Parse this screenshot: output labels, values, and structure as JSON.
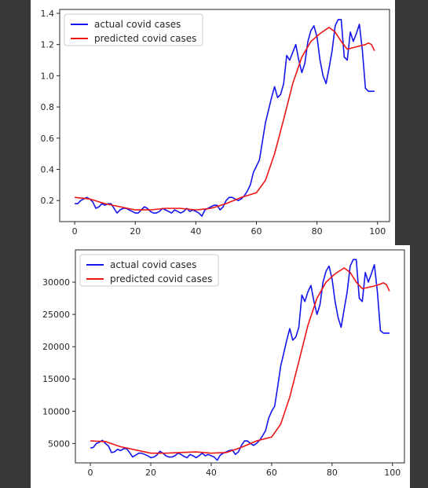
{
  "colors": {
    "actual": "#1515ee",
    "predicted": "#ee1515",
    "axis": "#262626",
    "background": "#383838"
  },
  "chart_data": [
    {
      "type": "line",
      "title": "",
      "xlabel": "",
      "ylabel": "",
      "xlim": [
        -4.95,
        103.95
      ],
      "ylim": [
        0.065,
        1.425
      ],
      "xticks": [
        "0",
        "20",
        "40",
        "60",
        "80",
        "100"
      ],
      "yticks": [
        "0.2",
        "0.4",
        "0.6",
        "0.8",
        "1.0",
        "1.2",
        "1.4"
      ],
      "legend_position": "top-left",
      "grid": false,
      "series": [
        {
          "name": "actual covid cases",
          "color": "#1515ee",
          "x": [
            0,
            1,
            2,
            3,
            4,
            5,
            6,
            7,
            8,
            9,
            10,
            11,
            12,
            13,
            14,
            15,
            16,
            17,
            18,
            19,
            20,
            21,
            22,
            23,
            24,
            25,
            26,
            27,
            28,
            29,
            30,
            31,
            32,
            33,
            34,
            35,
            36,
            37,
            38,
            39,
            40,
            41,
            42,
            43,
            44,
            45,
            46,
            47,
            48,
            49,
            50,
            51,
            52,
            53,
            54,
            55,
            56,
            57,
            58,
            59,
            60,
            61,
            62,
            63,
            64,
            65,
            66,
            67,
            68,
            69,
            70,
            71,
            72,
            73,
            74,
            75,
            76,
            77,
            78,
            79,
            80,
            81,
            82,
            83,
            84,
            85,
            86,
            87,
            88,
            89,
            90,
            91,
            92,
            93,
            94,
            95,
            96,
            97,
            98,
            99
          ],
          "y": [
            0.18,
            0.18,
            0.2,
            0.21,
            0.22,
            0.21,
            0.19,
            0.15,
            0.16,
            0.18,
            0.17,
            0.18,
            0.18,
            0.15,
            0.12,
            0.14,
            0.15,
            0.15,
            0.14,
            0.13,
            0.12,
            0.12,
            0.14,
            0.16,
            0.15,
            0.13,
            0.12,
            0.12,
            0.13,
            0.15,
            0.14,
            0.13,
            0.12,
            0.14,
            0.13,
            0.12,
            0.13,
            0.15,
            0.13,
            0.14,
            0.13,
            0.12,
            0.1,
            0.14,
            0.15,
            0.16,
            0.17,
            0.17,
            0.14,
            0.16,
            0.2,
            0.22,
            0.22,
            0.21,
            0.2,
            0.21,
            0.23,
            0.26,
            0.3,
            0.38,
            0.42,
            0.46,
            0.58,
            0.7,
            0.78,
            0.86,
            0.93,
            0.86,
            0.88,
            0.95,
            1.13,
            1.1,
            1.15,
            1.2,
            1.1,
            1.02,
            1.08,
            1.22,
            1.29,
            1.32,
            1.25,
            1.1,
            1.0,
            0.95,
            1.05,
            1.16,
            1.32,
            1.36,
            1.36,
            1.12,
            1.1,
            1.28,
            1.22,
            1.27,
            1.33,
            1.16,
            0.92,
            0.9,
            0.9,
            0.9
          ]
        },
        {
          "name": "predicted covid cases",
          "color": "#ee1515",
          "x": [
            0,
            5,
            10,
            15,
            20,
            25,
            30,
            35,
            40,
            45,
            50,
            55,
            60,
            63,
            66,
            69,
            72,
            75,
            78,
            81,
            84,
            86,
            88,
            90,
            92,
            94,
            96,
            97,
            98,
            99
          ],
          "y": [
            0.22,
            0.21,
            0.18,
            0.16,
            0.14,
            0.14,
            0.15,
            0.15,
            0.14,
            0.15,
            0.18,
            0.22,
            0.25,
            0.33,
            0.5,
            0.72,
            0.95,
            1.12,
            1.22,
            1.27,
            1.31,
            1.28,
            1.22,
            1.17,
            1.18,
            1.19,
            1.2,
            1.21,
            1.2,
            1.16
          ]
        }
      ]
    },
    {
      "type": "line",
      "title": "",
      "xlabel": "",
      "ylabel": "",
      "xlim": [
        -4.95,
        103.95
      ],
      "ylim": [
        2000,
        35000
      ],
      "xticks": [
        "0",
        "20",
        "40",
        "60",
        "80",
        "100"
      ],
      "yticks": [
        "5000",
        "10000",
        "15000",
        "20000",
        "25000",
        "30000"
      ],
      "legend_position": "top-left",
      "grid": false,
      "series": [
        {
          "name": "actual covid cases",
          "color": "#1515ee",
          "x": [
            0,
            1,
            2,
            3,
            4,
            5,
            6,
            7,
            8,
            9,
            10,
            11,
            12,
            13,
            14,
            15,
            16,
            17,
            18,
            19,
            20,
            21,
            22,
            23,
            24,
            25,
            26,
            27,
            28,
            29,
            30,
            31,
            32,
            33,
            34,
            35,
            36,
            37,
            38,
            39,
            40,
            41,
            42,
            43,
            44,
            45,
            46,
            47,
            48,
            49,
            50,
            51,
            52,
            53,
            54,
            55,
            56,
            57,
            58,
            59,
            60,
            61,
            62,
            63,
            64,
            65,
            66,
            67,
            68,
            69,
            70,
            71,
            72,
            73,
            74,
            75,
            76,
            77,
            78,
            79,
            80,
            81,
            82,
            83,
            84,
            85,
            86,
            87,
            88,
            89,
            90,
            91,
            92,
            93,
            94,
            95,
            96,
            97,
            98,
            99
          ],
          "y": [
            4300,
            4400,
            5000,
            5200,
            5500,
            5000,
            4600,
            3600,
            3700,
            4100,
            3900,
            4200,
            4200,
            3600,
            2900,
            3200,
            3500,
            3500,
            3300,
            3100,
            2800,
            2900,
            3200,
            3800,
            3500,
            3100,
            2900,
            2900,
            3100,
            3500,
            3300,
            3000,
            2800,
            3300,
            3100,
            2800,
            3100,
            3500,
            3100,
            3300,
            3100,
            2900,
            2400,
            3200,
            3500,
            3700,
            3900,
            4000,
            3300,
            3700,
            4700,
            5400,
            5400,
            5000,
            4700,
            5000,
            5500,
            6200,
            7000,
            8900,
            10000,
            10800,
            13800,
            17000,
            19000,
            21000,
            22800,
            21000,
            21500,
            23000,
            28000,
            27000,
            28500,
            29500,
            27000,
            25000,
            26500,
            30000,
            31700,
            32500,
            30500,
            27000,
            24500,
            23000,
            25800,
            28500,
            32500,
            33500,
            33500,
            27500,
            27000,
            31500,
            30000,
            31300,
            32700,
            28500,
            22500,
            22100,
            22100,
            22100
          ]
        },
        {
          "name": "predicted covid cases",
          "color": "#ee1515",
          "x": [
            0,
            5,
            10,
            15,
            20,
            25,
            30,
            35,
            40,
            45,
            50,
            55,
            60,
            63,
            66,
            69,
            72,
            75,
            78,
            81,
            84,
            86,
            88,
            90,
            92,
            94,
            96,
            97,
            98,
            99
          ],
          "y": [
            5400,
            5300,
            4500,
            4000,
            3500,
            3500,
            3600,
            3700,
            3500,
            3600,
            4400,
            5400,
            6000,
            8000,
            12200,
            17700,
            23300,
            27500,
            30000,
            31300,
            32200,
            31500,
            30000,
            29000,
            29200,
            29400,
            29700,
            29900,
            29600,
            28600
          ]
        }
      ]
    }
  ]
}
